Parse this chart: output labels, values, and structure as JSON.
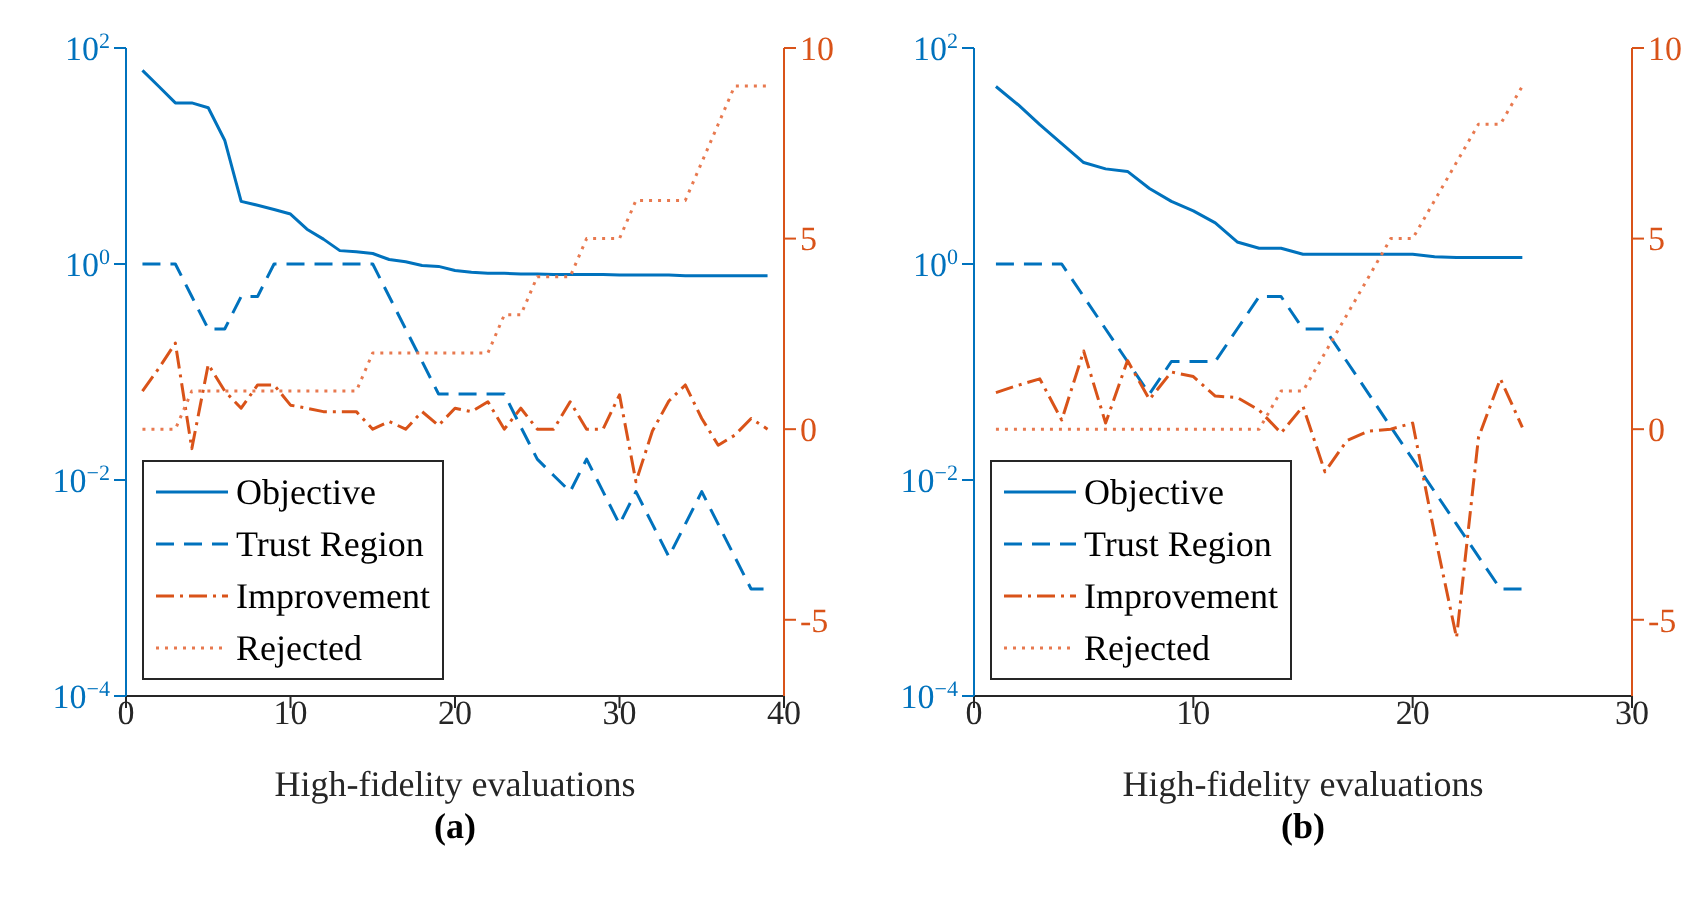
{
  "chart_data": [
    {
      "type": "line",
      "xlabel": "High-fidelity evaluations",
      "annotations": [
        "(a)"
      ],
      "legend": "bottom left",
      "log": "y",
      "xlim": [
        0,
        40
      ],
      "xticks": [
        0,
        10,
        20,
        30,
        40
      ],
      "ylim": [
        0.0001,
        100
      ],
      "yticks": [
        {
          "value": 0.0001,
          "label": "10$^{−4}$"
        },
        {
          "value": 0.01,
          "label": "10$^{−2}$"
        },
        {
          "value": 1,
          "label": "10$^{0}$"
        },
        {
          "value": 100,
          "label": "10$^{2}$"
        }
      ],
      "y2lim": [
        -7,
        10
      ],
      "y2ticks": [
        -5,
        0,
        5,
        10
      ],
      "x": [
        1,
        2,
        3,
        4,
        5,
        6,
        7,
        8,
        9,
        10,
        11,
        12,
        13,
        14,
        15,
        16,
        17,
        18,
        19,
        20,
        21,
        22,
        23,
        24,
        25,
        26,
        27,
        28,
        29,
        30,
        31,
        32,
        33,
        34,
        35,
        36,
        37,
        38,
        39
      ],
      "series": [
        {
          "name": "Objective",
          "color": "#0072bd",
          "line_style": "solid",
          "values": [
            62,
            44,
            31,
            31,
            28,
            14,
            3.8,
            3.5,
            3.2,
            2.9,
            2.1,
            1.7,
            1.33,
            1.3,
            1.25,
            1.1,
            1.05,
            0.97,
            0.95,
            0.87,
            0.84,
            0.82,
            0.82,
            0.81,
            0.81,
            0.8,
            0.8,
            0.8,
            0.8,
            0.79,
            0.79,
            0.79,
            0.79,
            0.78,
            0.78,
            0.78,
            0.78,
            0.78,
            0.78
          ]
        },
        {
          "name": "Trust Region",
          "color": "#0072bd",
          "line_style": "dashed",
          "values": [
            1,
            1,
            1,
            0.5,
            0.25,
            0.25,
            0.5,
            0.5,
            1,
            1,
            1,
            1,
            1,
            1,
            1,
            0.5,
            0.25,
            0.125,
            0.0625,
            0.0625,
            0.0625,
            0.0625,
            0.0625,
            0.031,
            0.0156,
            0.011,
            0.0078,
            0.0156,
            0.0078,
            0.0039,
            0.0078,
            0.0039,
            0.00195,
            0.0039,
            0.0078,
            0.0039,
            0.00195,
            0.00098,
            0.00098
          ]
        },
        {
          "name": "Improvement",
          "color": "#d95319",
          "line_style": "dashdot",
          "axis": "y2",
          "values": [
            1.0,
            1.6,
            2.26,
            -0.51,
            1.7,
            1.0,
            0.55,
            1.16,
            1.16,
            0.63,
            0.55,
            0.46,
            0.46,
            0.46,
            0,
            0.2,
            0,
            0.46,
            0.1,
            0.55,
            0.46,
            0.72,
            0,
            0.55,
            0,
            0,
            0.72,
            0,
            0,
            0.9,
            -1.38,
            -0.05,
            0.74,
            1.16,
            0.28,
            -0.42,
            -0.16,
            0.28,
            0
          ]
        },
        {
          "name": "Rejected",
          "color": "#e8794f",
          "line_style": "dotted",
          "axis": "y2",
          "values": [
            0,
            0,
            0,
            1,
            1,
            1,
            1,
            1,
            1,
            1,
            1,
            1,
            1,
            1,
            2,
            2,
            2,
            2,
            2,
            2,
            2,
            2,
            3,
            3,
            4,
            4,
            4,
            5,
            5,
            5,
            6,
            6,
            6,
            6,
            7,
            8,
            9,
            9,
            9
          ]
        }
      ]
    },
    {
      "type": "line",
      "xlabel": "High-fidelity evaluations",
      "annotations": [
        "(b)"
      ],
      "legend": "bottom left",
      "log": "y",
      "xlim": [
        0,
        30
      ],
      "xticks": [
        0,
        10,
        20,
        30
      ],
      "ylim": [
        0.0001,
        100
      ],
      "yticks": [
        {
          "value": 0.0001,
          "label": "10$^{−4}$"
        },
        {
          "value": 0.01,
          "label": "10$^{−2}$"
        },
        {
          "value": 1,
          "label": "10$^{0}$"
        },
        {
          "value": 100,
          "label": "10$^{2}$"
        }
      ],
      "y2lim": [
        -7,
        10
      ],
      "y2ticks": [
        -5,
        0,
        5,
        10
      ],
      "x": [
        1,
        2,
        3,
        4,
        5,
        6,
        7,
        8,
        9,
        10,
        11,
        12,
        13,
        14,
        15,
        16,
        17,
        18,
        19,
        20,
        21,
        22,
        23,
        24,
        25
      ],
      "series": [
        {
          "name": "Objective",
          "color": "#0072bd",
          "line_style": "solid",
          "values": [
            44,
            30,
            19.5,
            13,
            8.7,
            7.6,
            7.2,
            5.0,
            3.8,
            3.1,
            2.4,
            1.6,
            1.4,
            1.4,
            1.23,
            1.23,
            1.23,
            1.23,
            1.23,
            1.23,
            1.17,
            1.15,
            1.15,
            1.15,
            1.15
          ]
        },
        {
          "name": "Trust Region",
          "color": "#0072bd",
          "line_style": "dashed",
          "values": [
            1,
            1,
            1,
            1,
            0.5,
            0.25,
            0.125,
            0.0625,
            0.125,
            0.125,
            0.125,
            0.25,
            0.5,
            0.5,
            0.25,
            0.25,
            0.125,
            0.0625,
            0.031,
            0.0156,
            0.0078,
            0.0039,
            0.00195,
            0.00098,
            0.00098
          ]
        },
        {
          "name": "Improvement",
          "color": "#d95319",
          "line_style": "dashdot",
          "axis": "y2",
          "values": [
            0.96,
            1.15,
            1.32,
            0.24,
            2.05,
            0.16,
            1.8,
            0.78,
            1.5,
            1.38,
            0.87,
            0.83,
            0.5,
            -0.1,
            0.6,
            -1.12,
            -0.3,
            -0.05,
            0,
            0.16,
            -2.75,
            -5.47,
            -0.22,
            1.32,
            0.05
          ]
        },
        {
          "name": "Rejected",
          "color": "#e8794f",
          "line_style": "dotted",
          "axis": "y2",
          "values": [
            0,
            0,
            0,
            0,
            0,
            0,
            0,
            0,
            0,
            0,
            0,
            0,
            0,
            1,
            1,
            2,
            3,
            4,
            5,
            5,
            6,
            7,
            8,
            8,
            9
          ]
        }
      ]
    }
  ]
}
